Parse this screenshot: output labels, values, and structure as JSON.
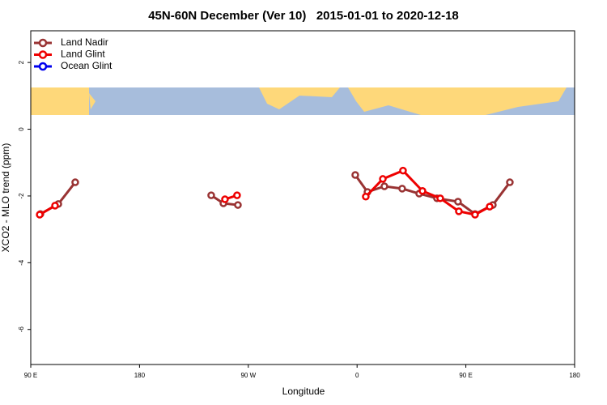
{
  "chart_data": {
    "type": "line",
    "title": "45N-60N December (Ver 10)   2015-01-01 to 2020-12-18",
    "x_label": "Longitude",
    "y_label": "XCO2 - MLO trend (ppm)",
    "xlim": [
      90,
      540
    ],
    "ylim": [
      -7.05,
      2.95
    ],
    "xticks": [
      {
        "value": 90,
        "label": "90 E"
      },
      180,
      {
        "value": 270,
        "label": "90 W"
      },
      {
        "value": 360,
        "label": "0"
      },
      {
        "value": 450,
        "label": "90 E"
      },
      {
        "value": 540,
        "label": "180"
      }
    ],
    "yticks": [
      -6,
      -4,
      -2,
      0,
      2
    ],
    "legend": "top-left",
    "series": [
      {
        "name": "Land Nadir",
        "color": "#993333",
        "x": [
          98.0,
          112.8,
          126.8,
          null,
          239.3,
          249.4,
          261.4,
          null,
          358.5,
          368.6,
          382.6,
          397.3,
          411.4,
          426.1,
          443.5,
          457.6,
          472.3,
          486.4
        ],
        "values": [
          -2.54,
          -2.24,
          -1.59,
          null,
          -1.98,
          -2.22,
          -2.27,
          null,
          -1.37,
          -1.88,
          -1.71,
          -1.78,
          -1.93,
          -2.07,
          -2.17,
          -2.54,
          -2.27,
          -1.59
        ]
      },
      {
        "name": "Land Glint",
        "color": "#ee0000",
        "x": [
          97.4,
          110.1,
          null,
          250.7,
          260.7,
          null,
          367.2,
          381.3,
          398.0,
          414.1,
          428.8,
          444.2,
          457.6,
          469.7
        ],
        "values": [
          -2.56,
          -2.29,
          null,
          -2.1,
          -1.98,
          null,
          -2.02,
          -1.49,
          -1.24,
          -1.85,
          -2.07,
          -2.46,
          -2.56,
          -2.32
        ]
      },
      {
        "name": "Ocean Glint",
        "color": "#0000ee",
        "x": [],
        "values": []
      }
    ]
  }
}
